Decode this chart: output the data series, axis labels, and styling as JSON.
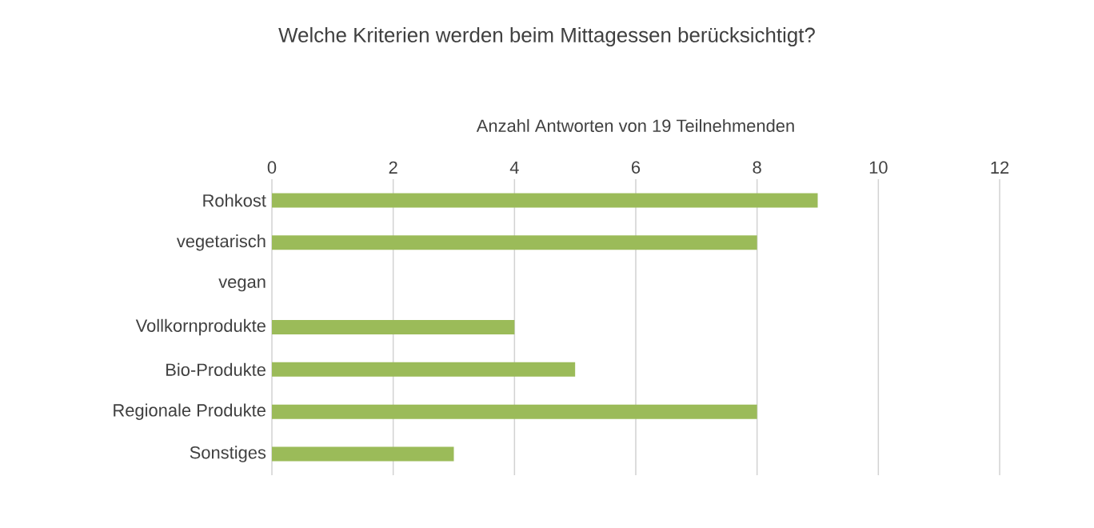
{
  "chart_data": {
    "type": "bar",
    "orientation": "horizontal",
    "title": "Welche Kriterien werden beim Mittagessen berücksichtigt?",
    "xlabel": "Anzahl Antworten von 19 Teilnehmenden",
    "categories": [
      "Rohkost",
      "vegetarisch",
      "vegan",
      "Vollkornprodukte",
      "Bio-Produkte",
      "Regionale Produkte",
      "Sonstiges"
    ],
    "values": [
      9,
      8,
      0,
      4,
      5,
      8,
      3
    ],
    "color": "#9bbb59",
    "xlim": [
      0,
      12
    ],
    "xticks": [
      0,
      2,
      4,
      6,
      8,
      10,
      12
    ],
    "grid": "x"
  }
}
